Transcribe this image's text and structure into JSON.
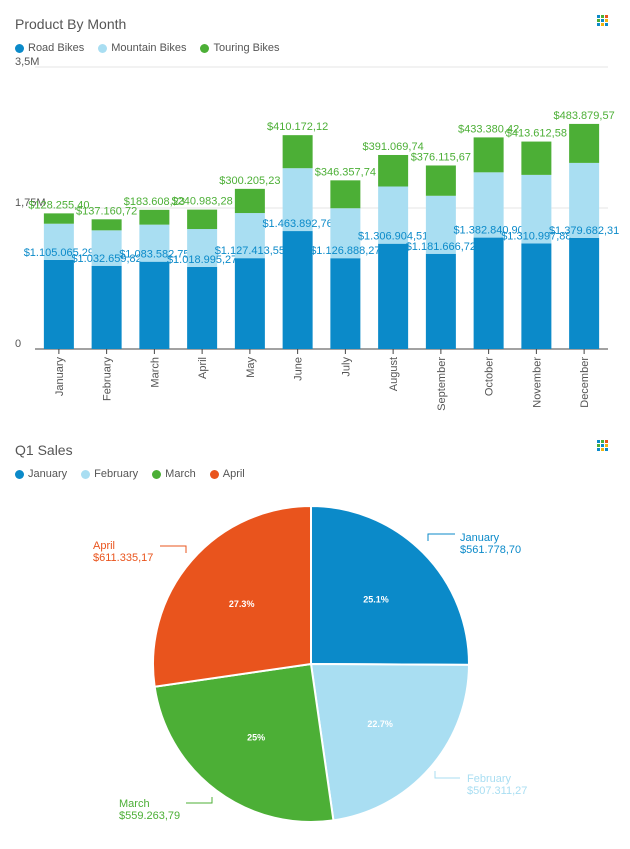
{
  "colors": {
    "road": "#0b8ac9",
    "mountain": "#a9def2",
    "touring": "#4caf36",
    "april": "#e9541d",
    "axis": "#444444",
    "text": "#555555"
  },
  "bar_panel": {
    "title": "Product By Month",
    "icon": "grid-icon",
    "legend": [
      {
        "label": "Road Bikes",
        "color": "#0b8ac9"
      },
      {
        "label": "Mountain Bikes",
        "color": "#a9def2"
      },
      {
        "label": "Touring Bikes",
        "color": "#4caf36"
      }
    ]
  },
  "pie_panel": {
    "title": "Q1 Sales",
    "icon": "grid-icon",
    "legend": [
      {
        "label": "January",
        "color": "#0b8ac9"
      },
      {
        "label": "February",
        "color": "#a9def2"
      },
      {
        "label": "March",
        "color": "#4caf36"
      },
      {
        "label": "April",
        "color": "#e9541d"
      }
    ]
  },
  "chart_data": [
    {
      "type": "bar",
      "stacked": true,
      "title": "Product By Month",
      "categories": [
        "January",
        "February",
        "March",
        "April",
        "May",
        "June",
        "July",
        "August",
        "September",
        "October",
        "November",
        "December"
      ],
      "series": [
        {
          "name": "Road Bikes",
          "color": "#0b8ac9",
          "values": [
            1105065,
            1032660,
            1083582,
            1018995,
            1127413,
            1463892,
            1126888,
            1306904,
            1181666,
            1382840,
            1310997,
            1379682
          ],
          "labels": [
            "$1.105.065,29",
            "$1.032.659,82",
            "$1.083.582,75",
            "$1.018.995,27",
            "$1.127.413,55",
            "$1.463.892,76",
            "$1.126.888,27",
            "$1.306.904,51",
            "$1.181.666,72",
            "$1.382.840,90",
            "$1.310.997,88",
            "$1.379.682,31"
          ]
        },
        {
          "name": "Mountain Bikes",
          "color": "#a9def2",
          "values": [
            450000,
            440000,
            460000,
            470000,
            560000,
            780000,
            620000,
            710000,
            720000,
            810000,
            850000,
            930000
          ],
          "labels": []
        },
        {
          "name": "Touring Bikes",
          "color": "#4caf36",
          "values": [
            128255,
            137160,
            183608,
            240983,
            300205,
            410172,
            346357,
            391069,
            376115,
            433380,
            413612,
            483879
          ],
          "labels": [
            "$128.255,40",
            "$137.160,72",
            "$183.608,23",
            "$240.983,28",
            "$300.205,23",
            "$410.172,12",
            "$346.357,74",
            "$391.069,74",
            "$376.115,67",
            "$433.380,42",
            "$413.612,58",
            "$483.879,57"
          ]
        }
      ],
      "yticks": [
        {
          "value": 0,
          "label": "0"
        },
        {
          "value": 1750000,
          "label": "1,75M"
        },
        {
          "value": 3500000,
          "label": "3,5M"
        }
      ],
      "ylim": [
        0,
        3500000
      ],
      "legend_position": "top-left"
    },
    {
      "type": "pie",
      "title": "Q1 Sales",
      "slices": [
        {
          "name": "January",
          "value": 561778.7,
          "label": "$561.778,70",
          "percent": "25.1%",
          "color": "#0b8ac9"
        },
        {
          "name": "February",
          "value": 507311.27,
          "label": "$507.311,27",
          "percent": "22.7%",
          "color": "#a9def2"
        },
        {
          "name": "March",
          "value": 559263.79,
          "label": "$559.263,79",
          "percent": "25%",
          "color": "#4caf36"
        },
        {
          "name": "April",
          "value": 611335.17,
          "label": "$611.335,17",
          "percent": "27.3%",
          "color": "#e9541d"
        }
      ],
      "legend_position": "top-left"
    }
  ]
}
